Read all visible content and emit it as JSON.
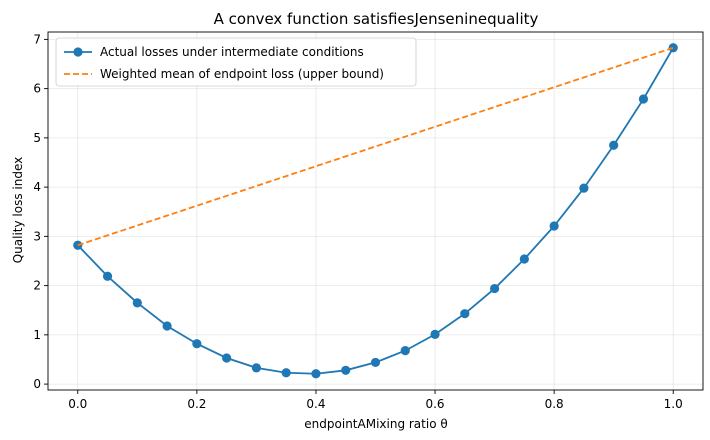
{
  "chart_data": {
    "type": "line",
    "title": "A convex function satisfiesJenseninequality",
    "xlabel": "endpointAMixing ratio θ",
    "ylabel": "Quality loss index",
    "xlim": [
      -0.05,
      1.05
    ],
    "ylim": [
      -0.12,
      7.15
    ],
    "xticks": [
      0.0,
      0.2,
      0.4,
      0.6,
      0.8,
      1.0
    ],
    "xtick_labels": [
      "0.0",
      "0.2",
      "0.4",
      "0.6",
      "0.8",
      "1.0"
    ],
    "yticks": [
      0,
      1,
      2,
      3,
      4,
      5,
      6,
      7
    ],
    "ytick_labels": [
      "0",
      "1",
      "2",
      "3",
      "4",
      "5",
      "6",
      "7"
    ],
    "grid": true,
    "legend_position": "upper-left",
    "series": [
      {
        "name": "Actual losses under intermediate conditions",
        "color": "#1f77b4",
        "style": "solid",
        "marker": "circle",
        "x": [
          0.0,
          0.05,
          0.1,
          0.15,
          0.2,
          0.25,
          0.3,
          0.35,
          0.4,
          0.45,
          0.5,
          0.55,
          0.6,
          0.65,
          0.7,
          0.75,
          0.8,
          0.85,
          0.9,
          0.95,
          1.0
        ],
        "y": [
          2.82,
          2.19,
          1.65,
          1.18,
          0.82,
          0.53,
          0.33,
          0.23,
          0.21,
          0.28,
          0.44,
          0.68,
          1.01,
          1.43,
          1.94,
          2.54,
          3.21,
          3.98,
          4.85,
          5.79,
          6.83
        ]
      },
      {
        "name": "Weighted mean of endpoint loss (upper bound)",
        "color": "#ff7f0e",
        "style": "dashed",
        "marker": "none",
        "x": [
          0.0,
          1.0
        ],
        "y": [
          2.82,
          6.83
        ]
      }
    ]
  }
}
